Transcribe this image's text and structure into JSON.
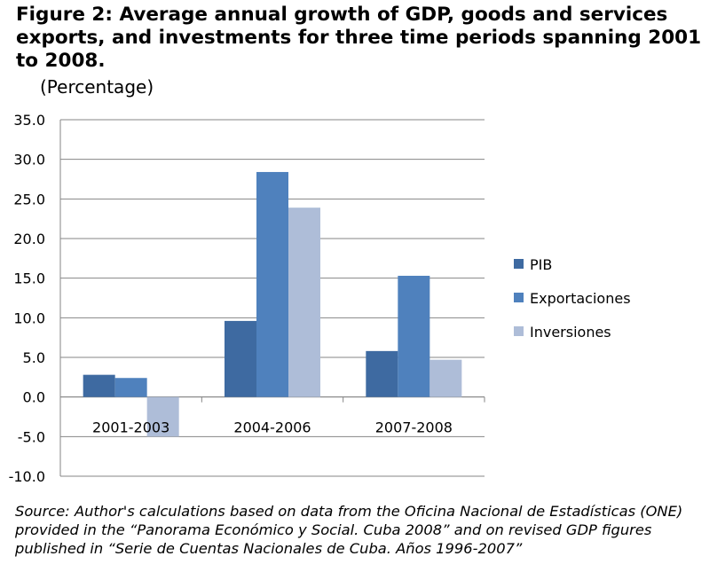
{
  "figure": {
    "title": "Figure 2: Average annual growth of GDP, goods and services exports, and investments for three time periods spanning 2001 to 2008.",
    "subtitle": "(Percentage)",
    "source": "Source: Author's calculations based on data from the Oficina Nacional de Estadísticas (ONE) provided in the “Panorama Económico y Social. Cuba 2008” and on revised GDP figures published in “Serie de Cuentas Nacionales de Cuba. Años 1996-2007”"
  },
  "chart_data": {
    "type": "bar",
    "categories": [
      "2001-2003",
      "2004-2006",
      "2007-2008"
    ],
    "series": [
      {
        "name": "PIB",
        "values": [
          2.8,
          9.6,
          5.8
        ],
        "color": "#3e6aa1"
      },
      {
        "name": "Exportaciones",
        "values": [
          2.4,
          28.4,
          15.3
        ],
        "color": "#4f81bd"
      },
      {
        "name": "Inversiones",
        "values": [
          -5.0,
          23.9,
          4.7
        ],
        "color": "#aebdd8"
      }
    ],
    "yticks": [
      "35.0",
      "30.0",
      "25.0",
      "20.0",
      "15.0",
      "10.0",
      "5.0",
      "0.0",
      "-5.0",
      "-10.0"
    ],
    "ylim": [
      -10,
      35
    ],
    "grid": true,
    "legend_position": "right"
  }
}
